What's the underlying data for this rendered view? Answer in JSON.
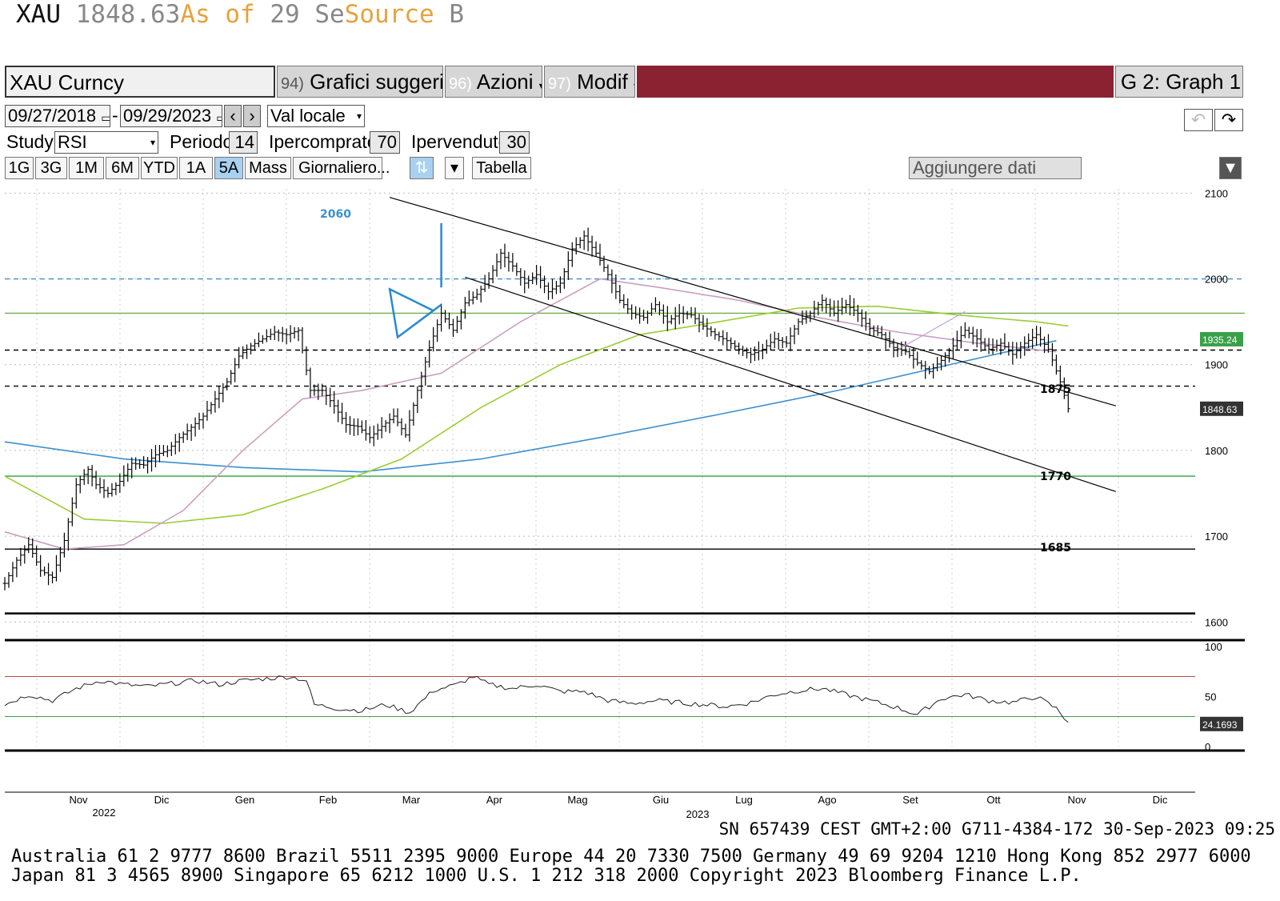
{
  "header": {
    "ticker": "XAU",
    "price": "1848.63",
    "as_of": "As of",
    "date_frag": "29 Se",
    "source": "Source",
    "source_frag": "B"
  },
  "toolbar": {
    "security": "XAU Curncy",
    "btn94_num": "94)",
    "btn94": "Grafici suggeriti",
    "btn96_num": "96)",
    "btn96": "Azioni",
    "btn97_num": "97)",
    "btn97": "Modif",
    "graph": "G 2: Graph 1",
    "accent": "#8b2232"
  },
  "controls": {
    "start_date": "09/27/2018",
    "end_date": "09/29/2023",
    "dash": "-",
    "currency": "Val locale",
    "study_label": "Study",
    "study": "RSI",
    "period_label": "Periodo",
    "period": "14",
    "overbought_label": "Ipercomprato",
    "overbought": "70",
    "oversold_label": "Ipervenduto",
    "oversold": "30",
    "periods": [
      "1G",
      "3G",
      "1M",
      "6M",
      "YTD",
      "1A",
      "5A",
      "Mass",
      "Giornaliero..."
    ],
    "selected_period": "5A",
    "table_label": "Tabella",
    "add_data": "Aggiungere dati"
  },
  "chart_data": [
    {
      "type": "ohlc",
      "title": "XAU Curncy",
      "x_tick_labels": [
        "Nov",
        "Dic",
        "Gen",
        "Feb",
        "Mar",
        "Apr",
        "Mag",
        "Giu",
        "Lug",
        "Ago",
        "Set",
        "Ott",
        "Nov",
        "Dic"
      ],
      "year_labels": [
        "2022",
        "2023"
      ],
      "y_ticks": [
        1600,
        1700,
        1800,
        1900,
        2000,
        2100
      ],
      "ylim": [
        1590,
        2105
      ],
      "last_price": 1848.63,
      "last_price_label": "1848.63",
      "ma_value": 1935.24,
      "ma_value_label": "1935.24",
      "price_series": [
        [
          0,
          1645
        ],
        [
          3,
          1672
        ],
        [
          6,
          1690
        ],
        [
          9,
          1660
        ],
        [
          12,
          1652
        ],
        [
          15,
          1695
        ],
        [
          18,
          1760
        ],
        [
          21,
          1778
        ],
        [
          23,
          1760
        ],
        [
          26,
          1750
        ],
        [
          29,
          1764
        ],
        [
          32,
          1785
        ],
        [
          35,
          1783
        ],
        [
          38,
          1795
        ],
        [
          41,
          1800
        ],
        [
          44,
          1815
        ],
        [
          47,
          1827
        ],
        [
          50,
          1840
        ],
        [
          53,
          1860
        ],
        [
          56,
          1880
        ],
        [
          59,
          1910
        ],
        [
          62,
          1922
        ],
        [
          65,
          1930
        ],
        [
          68,
          1938
        ],
        [
          71,
          1935
        ],
        [
          74,
          1940
        ],
        [
          77,
          1870
        ],
        [
          80,
          1870
        ],
        [
          83,
          1852
        ],
        [
          86,
          1830
        ],
        [
          89,
          1828
        ],
        [
          92,
          1815
        ],
        [
          95,
          1828
        ],
        [
          98,
          1840
        ],
        [
          101,
          1818
        ],
        [
          104,
          1870
        ],
        [
          107,
          1920
        ],
        [
          110,
          1960
        ],
        [
          113,
          1940
        ],
        [
          116,
          1972
        ],
        [
          119,
          1982
        ],
        [
          122,
          2000
        ],
        [
          125,
          2030
        ],
        [
          128,
          2015
        ],
        [
          131,
          1995
        ],
        [
          134,
          2005
        ],
        [
          137,
          1985
        ],
        [
          140,
          1995
        ],
        [
          143,
          2035
        ],
        [
          146,
          2050
        ],
        [
          149,
          2030
        ],
        [
          152,
          2005
        ],
        [
          155,
          1975
        ],
        [
          158,
          1960
        ],
        [
          161,
          1955
        ],
        [
          164,
          1970
        ],
        [
          167,
          1950
        ],
        [
          170,
          1960
        ],
        [
          173,
          1958
        ],
        [
          176,
          1945
        ],
        [
          179,
          1935
        ],
        [
          182,
          1928
        ],
        [
          185,
          1918
        ],
        [
          188,
          1912
        ],
        [
          191,
          1918
        ],
        [
          194,
          1930
        ],
        [
          197,
          1925
        ],
        [
          200,
          1950
        ],
        [
          203,
          1960
        ],
        [
          206,
          1975
        ],
        [
          209,
          1960
        ],
        [
          212,
          1970
        ],
        [
          215,
          1960
        ],
        [
          218,
          1942
        ],
        [
          221,
          1935
        ],
        [
          224,
          1920
        ],
        [
          227,
          1915
        ],
        [
          230,
          1902
        ],
        [
          233,
          1892
        ],
        [
          236,
          1905
        ],
        [
          239,
          1922
        ],
        [
          242,
          1940
        ],
        [
          245,
          1930
        ],
        [
          248,
          1918
        ],
        [
          251,
          1925
        ],
        [
          254,
          1912
        ],
        [
          257,
          1925
        ],
        [
          260,
          1935
        ],
        [
          263,
          1918
        ],
        [
          266,
          1880
        ],
        [
          268,
          1848.63
        ]
      ],
      "series": [
        {
          "name": "",
          "color": "#3a90d0",
          "values": [
            [
              0,
              1810
            ],
            [
              30,
              1790
            ],
            [
              60,
              1780
            ],
            [
              90,
              1775
            ],
            [
              120,
              1790
            ],
            [
              150,
              1815
            ],
            [
              180,
              1842
            ],
            [
              210,
              1870
            ],
            [
              240,
              1902
            ],
            [
              265,
              1928
            ]
          ]
        },
        {
          "name": "",
          "color": "#9acd32",
          "values": [
            [
              0,
              1770
            ],
            [
              20,
              1720
            ],
            [
              40,
              1715
            ],
            [
              60,
              1725
            ],
            [
              80,
              1755
            ],
            [
              100,
              1790
            ],
            [
              120,
              1850
            ],
            [
              140,
              1900
            ],
            [
              160,
              1935
            ],
            [
              180,
              1950
            ],
            [
              200,
              1966
            ],
            [
              220,
              1968
            ],
            [
              240,
              1958
            ],
            [
              260,
              1950
            ],
            [
              268,
              1945
            ]
          ]
        },
        {
          "name": "",
          "color": "#c9a0c0",
          "values": [
            [
              0,
              1705
            ],
            [
              15,
              1685
            ],
            [
              30,
              1690
            ],
            [
              45,
              1730
            ],
            [
              60,
              1800
            ],
            [
              75,
              1860
            ],
            [
              90,
              1870
            ],
            [
              110,
              1890
            ],
            [
              130,
              1950
            ],
            [
              150,
              2000
            ],
            [
              165,
              1990
            ],
            [
              185,
              1975
            ],
            [
              205,
              1955
            ],
            [
              225,
              1938
            ],
            [
              245,
              1925
            ],
            [
              265,
              1915
            ]
          ]
        }
      ],
      "annotations": [
        "2060",
        "1875",
        "1770",
        "1685"
      ],
      "horizontal_levels": [
        {
          "value": 2000,
          "style": "dashed",
          "color": "#3a90d0"
        },
        {
          "value": 1960,
          "style": "solid",
          "color": "#6ab04c"
        },
        {
          "value": 1917,
          "style": "dashed",
          "color": "#000000"
        },
        {
          "value": 1875,
          "style": "dashed",
          "color": "#000000"
        },
        {
          "value": 1770,
          "style": "solid",
          "color": "#2e9e3e"
        },
        {
          "value": 1685,
          "style": "solid",
          "color": "#000000"
        },
        {
          "value": 1610,
          "style": "solid",
          "color": "#000000"
        }
      ]
    },
    {
      "type": "line",
      "title": "RSI",
      "y_ticks": [
        0,
        50,
        100
      ],
      "ylim": [
        0,
        100
      ],
      "overbought": 70,
      "oversold": 30,
      "last_value": 24.1693,
      "last_value_label": "24.1693",
      "series": [
        {
          "name": "",
          "color": "#222222",
          "values": [
            [
              0,
              42
            ],
            [
              6,
              52
            ],
            [
              12,
              46
            ],
            [
              18,
              58
            ],
            [
              24,
              66
            ],
            [
              30,
              62
            ],
            [
              36,
              60
            ],
            [
              42,
              63
            ],
            [
              48,
              66
            ],
            [
              54,
              62
            ],
            [
              60,
              66
            ],
            [
              66,
              68
            ],
            [
              72,
              70
            ],
            [
              76,
              66
            ],
            [
              78,
              42
            ],
            [
              84,
              38
            ],
            [
              90,
              36
            ],
            [
              96,
              42
            ],
            [
              102,
              34
            ],
            [
              108,
              56
            ],
            [
              114,
              62
            ],
            [
              118,
              70
            ],
            [
              122,
              62
            ],
            [
              128,
              58
            ],
            [
              134,
              62
            ],
            [
              140,
              55
            ],
            [
              146,
              55
            ],
            [
              152,
              46
            ],
            [
              158,
              43
            ],
            [
              164,
              46
            ],
            [
              170,
              44
            ],
            [
              176,
              42
            ],
            [
              182,
              40
            ],
            [
              188,
              44
            ],
            [
              194,
              52
            ],
            [
              200,
              56
            ],
            [
              206,
              58
            ],
            [
              212,
              52
            ],
            [
              218,
              46
            ],
            [
              224,
              40
            ],
            [
              230,
              32
            ],
            [
              236,
              48
            ],
            [
              242,
              52
            ],
            [
              248,
              46
            ],
            [
              254,
              44
            ],
            [
              260,
              50
            ],
            [
              265,
              38
            ],
            [
              268,
              24.17
            ]
          ]
        }
      ]
    }
  ],
  "footer": {
    "sn_line": "SN 657439 CEST GMT+2:00 G711-4384-172 30-Sep-2023 09:25",
    "contacts": "Australia 61 2 9777 8600 Brazil 5511 2395 9000 Europe 44 20 7330 7500 Germany 49 69 9204 1210 Hong Kong 852 2977 6000",
    "contacts2": "Japan 81 3 4565 8900          Singapore 65 6212 1000          U.S. 1 212 318 2000          Copyright 2023 Bloomberg Finance L.P."
  }
}
